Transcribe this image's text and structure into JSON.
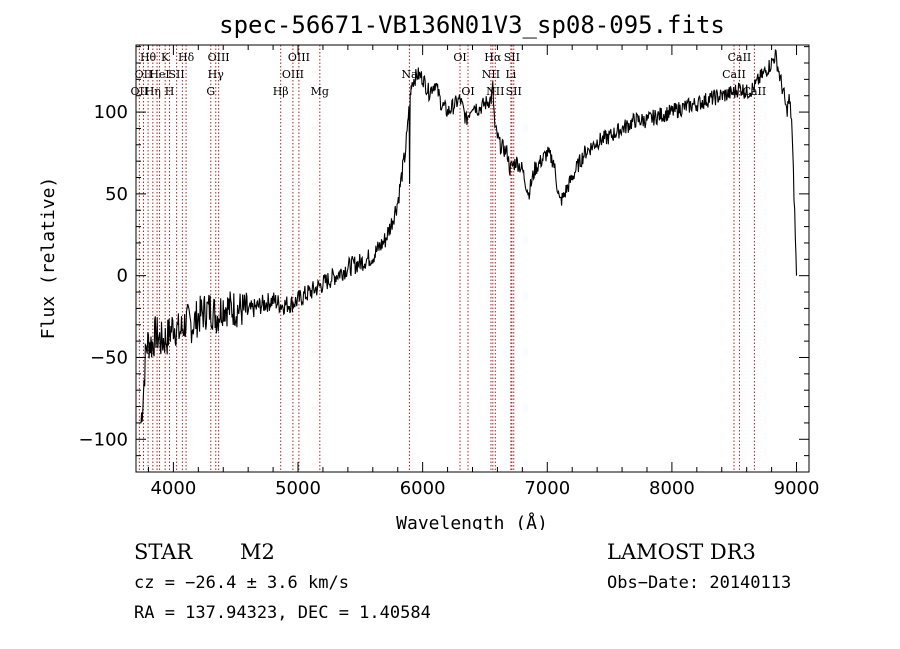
{
  "chart_data": {
    "type": "line",
    "title": "spec-56671-VB136N01V3_sp08-095.fits",
    "xlabel": "Wavelength (Å)",
    "ylabel": "Flux (relative)",
    "xlim": [
      3700,
      9100
    ],
    "ylim": [
      -120,
      141
    ],
    "xticks": [
      4000,
      5000,
      6000,
      7000,
      8000,
      9000
    ],
    "xtick_labels": [
      "4000",
      "5000",
      "6000",
      "7000",
      "8000",
      "9000"
    ],
    "yticks": [
      -100,
      -50,
      0,
      50,
      100
    ],
    "ytick_labels": [
      "−100",
      "−50",
      "0",
      "50",
      "100"
    ],
    "grid": false,
    "line_color": "#000000",
    "marker_color": "#b22222",
    "series": [
      {
        "name": "flux",
        "x": [
          3740,
          3760,
          3780,
          3800,
          3830,
          3860,
          3900,
          3950,
          4000,
          4050,
          4100,
          4150,
          4200,
          4250,
          4300,
          4350,
          4400,
          4450,
          4500,
          4600,
          4700,
          4800,
          4870,
          4950,
          5000,
          5050,
          5100,
          5200,
          5300,
          5400,
          5500,
          5600,
          5700,
          5750,
          5800,
          5830,
          5860,
          5880,
          5890,
          5895,
          5900,
          5905,
          5910,
          5930,
          5960,
          6000,
          6050,
          6100,
          6150,
          6200,
          6250,
          6300,
          6350,
          6400,
          6450,
          6500,
          6550,
          6563,
          6580,
          6620,
          6680,
          6700,
          6750,
          6800,
          6850,
          6900,
          6950,
          7000,
          7050,
          7100,
          7130,
          7150,
          7200,
          7250,
          7300,
          7400,
          7500,
          7600,
          7650,
          7700,
          7800,
          7900,
          8000,
          8100,
          8200,
          8300,
          8400,
          8500,
          8540,
          8600,
          8660,
          8700,
          8750,
          8800,
          8830,
          8850,
          8870,
          8900,
          8920,
          8940,
          8960,
          8980,
          9000
        ],
        "y": [
          -90,
          -70,
          -45,
          -40,
          -42,
          -35,
          -40,
          -38,
          -30,
          -35,
          -28,
          -30,
          -25,
          -22,
          -20,
          -25,
          -18,
          -20,
          -20,
          -22,
          -18,
          -15,
          -18,
          -17,
          -15,
          -12,
          -10,
          -5,
          0,
          5,
          8,
          12,
          22,
          32,
          45,
          60,
          75,
          90,
          105,
          60,
          110,
          112,
          118,
          120,
          123,
          121,
          112,
          118,
          105,
          100,
          104,
          108,
          95,
          105,
          102,
          105,
          108,
          115,
          90,
          80,
          75,
          65,
          70,
          65,
          50,
          65,
          70,
          75,
          70,
          45,
          48,
          52,
          60,
          68,
          75,
          82,
          85,
          90,
          92,
          95,
          95,
          98,
          100,
          103,
          105,
          108,
          110,
          112,
          115,
          112,
          115,
          120,
          125,
          130,
          135,
          128,
          120,
          110,
          100,
          108,
          96,
          50,
          0
        ]
      }
    ],
    "line_markers": [
      {
        "x": 3727,
        "label": "OII",
        "row": 2
      },
      {
        "x": 3760,
        "label": "OII",
        "row": 1
      },
      {
        "x": 3797,
        "label": "Hθ",
        "row": 0
      },
      {
        "x": 3835,
        "label": "Hη",
        "row": 2
      },
      {
        "x": 3869,
        "label": "",
        "row": 0
      },
      {
        "x": 3889,
        "label": "HeI",
        "row": 1
      },
      {
        "x": 3934,
        "label": "K",
        "row": 0
      },
      {
        "x": 3969,
        "label": "H",
        "row": 2
      },
      {
        "x": 4026,
        "label": "SII",
        "row": 1
      },
      {
        "x": 4072,
        "label": "",
        "row": 1
      },
      {
        "x": 4102,
        "label": "Hδ",
        "row": 0
      },
      {
        "x": 4300,
        "label": "G",
        "row": 2
      },
      {
        "x": 4340,
        "label": "Hγ",
        "row": 1
      },
      {
        "x": 4363,
        "label": "OIII",
        "row": 0
      },
      {
        "x": 4861,
        "label": "Hβ",
        "row": 2
      },
      {
        "x": 4959,
        "label": "OIII",
        "row": 1
      },
      {
        "x": 5007,
        "label": "OIII",
        "row": 0
      },
      {
        "x": 5175,
        "label": "Mg",
        "row": 2
      },
      {
        "x": 5894,
        "label": "Na",
        "row": 1
      },
      {
        "x": 6300,
        "label": "OI",
        "row": 0
      },
      {
        "x": 6364,
        "label": "OI",
        "row": 2
      },
      {
        "x": 6548,
        "label": "NII",
        "row": 1
      },
      {
        "x": 6563,
        "label": "Hα",
        "row": 0
      },
      {
        "x": 6583,
        "label": "NII",
        "row": 2
      },
      {
        "x": 6708,
        "label": "Li",
        "row": 1
      },
      {
        "x": 6716,
        "label": "SII",
        "row": 0
      },
      {
        "x": 6731,
        "label": "SII",
        "row": 2
      },
      {
        "x": 8498,
        "label": "CaII",
        "row": 1
      },
      {
        "x": 8542,
        "label": "CaII",
        "row": 0
      },
      {
        "x": 8662,
        "label": "CaII",
        "row": 2
      }
    ]
  },
  "info": {
    "object_class": "STAR",
    "subclass": "M2",
    "survey": "LAMOST DR3",
    "cz": "cz = −26.4 ± 3.6 km/s",
    "obs_date": "Obs−Date: 20140113",
    "coords": "RA = 137.94323, DEC =   1.40584"
  }
}
